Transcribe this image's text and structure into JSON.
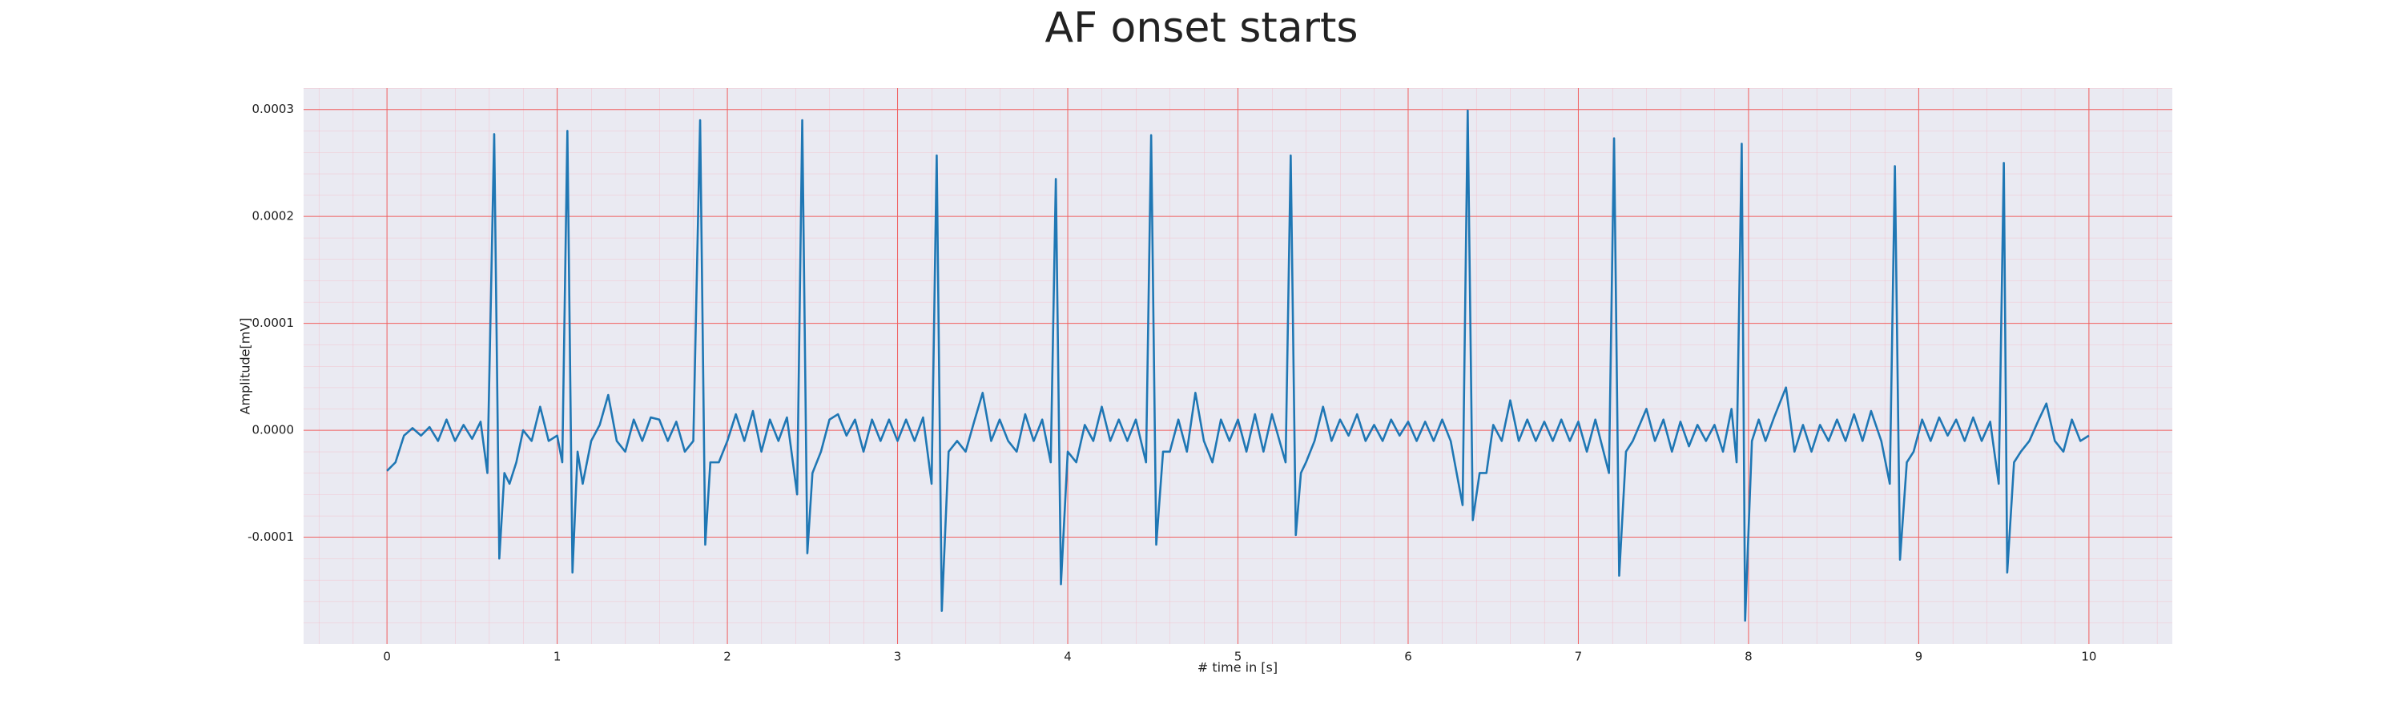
{
  "chart_data": {
    "type": "line",
    "title": "AF onset starts",
    "x_label": "# time in [s]",
    "y_label": "Amplitude[mV]",
    "xlim": [
      -0.49,
      10.49
    ],
    "ylim": [
      -0.0002,
      0.00032
    ],
    "xticks": [
      0,
      1,
      2,
      3,
      4,
      5,
      6,
      7,
      8,
      9,
      10
    ],
    "yticks": [
      {
        "value": -0.0001,
        "label": "-0.0001"
      },
      {
        "value": 0,
        "label": "0.0000"
      },
      {
        "value": 0.0001,
        "label": "0.0001"
      },
      {
        "value": 0.0002,
        "label": "0.0002"
      },
      {
        "value": 0.0003,
        "label": "0.0003"
      }
    ],
    "grid": true,
    "minor_grid": true,
    "x": [
      0,
      0.05,
      0.1,
      0.15,
      0.2,
      0.25,
      0.3,
      0.35,
      0.4,
      0.45,
      0.5,
      0.55,
      0.59,
      0.63,
      0.66,
      0.69,
      0.72,
      0.76,
      0.8,
      0.85,
      0.9,
      0.95,
      1.0,
      1.03,
      1.06,
      1.09,
      1.12,
      1.15,
      1.2,
      1.25,
      1.3,
      1.35,
      1.4,
      1.45,
      1.5,
      1.55,
      1.6,
      1.65,
      1.7,
      1.75,
      1.8,
      1.84,
      1.87,
      1.9,
      1.95,
      2.0,
      2.05,
      2.1,
      2.15,
      2.2,
      2.25,
      2.3,
      2.35,
      2.41,
      2.44,
      2.47,
      2.5,
      2.55,
      2.6,
      2.65,
      2.7,
      2.75,
      2.8,
      2.85,
      2.9,
      2.95,
      3.0,
      3.05,
      3.1,
      3.15,
      3.2,
      3.23,
      3.26,
      3.3,
      3.35,
      3.4,
      3.45,
      3.5,
      3.55,
      3.6,
      3.65,
      3.7,
      3.75,
      3.8,
      3.85,
      3.9,
      3.93,
      3.96,
      4.0,
      4.05,
      4.1,
      4.15,
      4.2,
      4.25,
      4.3,
      4.35,
      4.4,
      4.46,
      4.49,
      4.52,
      4.56,
      4.6,
      4.65,
      4.7,
      4.75,
      4.8,
      4.85,
      4.9,
      4.95,
      5.0,
      5.05,
      5.1,
      5.15,
      5.2,
      5.28,
      5.31,
      5.34,
      5.37,
      5.4,
      5.45,
      5.5,
      5.55,
      5.6,
      5.65,
      5.7,
      5.75,
      5.8,
      5.85,
      5.9,
      5.95,
      6.0,
      6.05,
      6.1,
      6.15,
      6.2,
      6.25,
      6.32,
      6.35,
      6.38,
      6.42,
      6.46,
      6.5,
      6.55,
      6.6,
      6.65,
      6.7,
      6.75,
      6.8,
      6.85,
      6.9,
      6.95,
      7.0,
      7.05,
      7.1,
      7.18,
      7.21,
      7.24,
      7.28,
      7.32,
      7.4,
      7.45,
      7.5,
      7.55,
      7.6,
      7.65,
      7.7,
      7.75,
      7.8,
      7.85,
      7.9,
      7.93,
      7.96,
      7.98,
      8.02,
      8.06,
      8.1,
      8.15,
      8.22,
      8.27,
      8.32,
      8.37,
      8.42,
      8.47,
      8.52,
      8.57,
      8.62,
      8.67,
      8.72,
      8.78,
      8.83,
      8.86,
      8.89,
      8.93,
      8.97,
      9.02,
      9.07,
      9.12,
      9.17,
      9.22,
      9.27,
      9.32,
      9.37,
      9.42,
      9.47,
      9.5,
      9.52,
      9.56,
      9.6,
      9.65,
      9.7,
      9.75,
      9.8,
      9.85,
      9.9,
      9.95,
      10.0
    ],
    "series": [
      {
        "color": "#1f77b4",
        "values": [
          -3.8e-05,
          -3e-05,
          -5e-06,
          2e-06,
          -5e-06,
          3e-06,
          -1e-05,
          1e-05,
          -1e-05,
          5e-06,
          -8e-06,
          8e-06,
          -4e-05,
          0.000277,
          -0.00012,
          -4e-05,
          -5e-05,
          -3e-05,
          0,
          -1e-05,
          2.2e-05,
          -1e-05,
          -5e-06,
          -3e-05,
          0.00028,
          -0.000133,
          -2e-05,
          -5e-05,
          -1e-05,
          5e-06,
          3.3e-05,
          -1e-05,
          -2e-05,
          1e-05,
          -1e-05,
          1.2e-05,
          1e-05,
          -1e-05,
          8e-06,
          -2e-05,
          -1e-05,
          0.00029,
          -0.000107,
          -3e-05,
          -3e-05,
          -1e-05,
          1.5e-05,
          -1e-05,
          1.8e-05,
          -2e-05,
          1e-05,
          -1e-05,
          1.2e-05,
          -6e-05,
          0.00029,
          -0.000115,
          -4e-05,
          -2e-05,
          1e-05,
          1.5e-05,
          -5e-06,
          1e-05,
          -2e-05,
          1e-05,
          -1e-05,
          1e-05,
          -1e-05,
          1e-05,
          -1e-05,
          1.2e-05,
          -5e-05,
          0.000257,
          -0.000169,
          -2e-05,
          -1e-05,
          -2e-05,
          8e-06,
          3.5e-05,
          -1e-05,
          1e-05,
          -1e-05,
          -2e-05,
          1.5e-05,
          -1e-05,
          1e-05,
          -3e-05,
          0.000235,
          -0.000144,
          -2e-05,
          -3e-05,
          5e-06,
          -1e-05,
          2.2e-05,
          -1e-05,
          1e-05,
          -1e-05,
          1e-05,
          -3e-05,
          0.000276,
          -0.000107,
          -2e-05,
          -2e-05,
          1e-05,
          -2e-05,
          3.5e-05,
          -1e-05,
          -3e-05,
          1e-05,
          -1e-05,
          1e-05,
          -2e-05,
          1.5e-05,
          -2e-05,
          1.5e-05,
          -3e-05,
          0.000257,
          -9.8e-05,
          -4e-05,
          -3e-05,
          -1e-05,
          2.2e-05,
          -1e-05,
          1e-05,
          -5e-06,
          1.5e-05,
          -1e-05,
          5e-06,
          -1e-05,
          1e-05,
          -5e-06,
          8e-06,
          -1e-05,
          8e-06,
          -1e-05,
          1e-05,
          -1e-05,
          -7e-05,
          0.000299,
          -8.4e-05,
          -4e-05,
          -4e-05,
          5e-06,
          -1e-05,
          2.8e-05,
          -1e-05,
          1e-05,
          -1e-05,
          8e-06,
          -1e-05,
          1e-05,
          -1e-05,
          8e-06,
          -2e-05,
          1e-05,
          -4e-05,
          0.000273,
          -0.000136,
          -2e-05,
          -1e-05,
          2e-05,
          -1e-05,
          1e-05,
          -2e-05,
          8e-06,
          -1.5e-05,
          5e-06,
          -1e-05,
          5e-06,
          -2e-05,
          2e-05,
          -3e-05,
          0.000268,
          -0.000178,
          -1e-05,
          1e-05,
          -1e-05,
          1.2e-05,
          4e-05,
          -2e-05,
          5e-06,
          -2e-05,
          5e-06,
          -1e-05,
          1e-05,
          -1e-05,
          1.5e-05,
          -1e-05,
          1.8e-05,
          -1e-05,
          -5e-05,
          0.000247,
          -0.000121,
          -3e-05,
          -2e-05,
          1e-05,
          -1e-05,
          1.2e-05,
          -5e-06,
          1e-05,
          -1e-05,
          1.2e-05,
          -1e-05,
          8e-06,
          -5e-05,
          0.00025,
          -0.000133,
          -3e-05,
          -2e-05,
          -1e-05,
          8e-06,
          2.5e-05,
          -1e-05,
          -2e-05,
          1e-05,
          -1e-05,
          -5e-06
        ]
      }
    ]
  }
}
